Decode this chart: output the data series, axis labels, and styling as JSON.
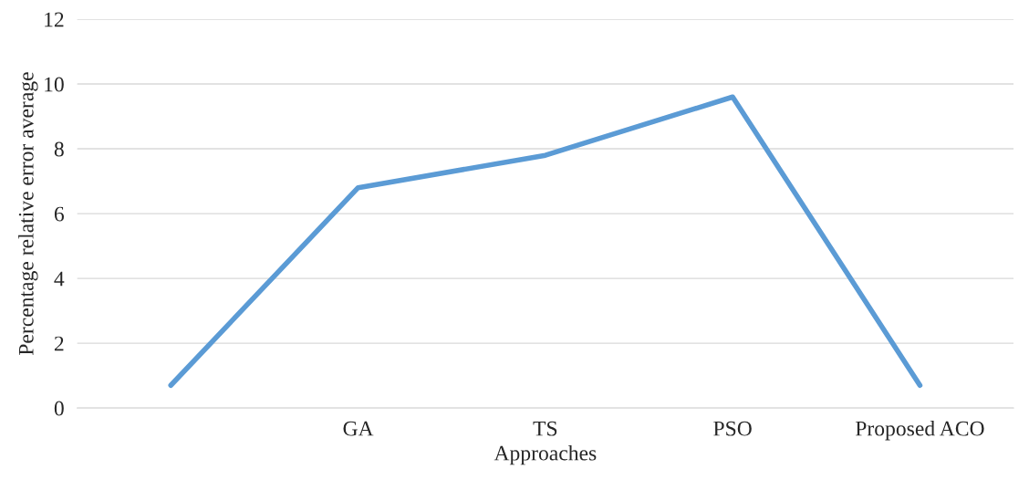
{
  "chart_data": {
    "type": "line",
    "categories": [
      null,
      "GA",
      "TS",
      "PSO",
      "Proposed ACO"
    ],
    "series": [
      {
        "color": "#5b9bd5",
        "values": [
          0.7,
          6.8,
          7.8,
          9.6,
          0.7
        ]
      }
    ],
    "xlabel": "Approaches",
    "ylabel": "Percentage relative error average",
    "ylim": [
      0,
      12
    ],
    "yticks": [
      0,
      2,
      4,
      6,
      8,
      10,
      12
    ],
    "grid": "y",
    "marker": "none",
    "line_style": "solid",
    "legend": false
  }
}
